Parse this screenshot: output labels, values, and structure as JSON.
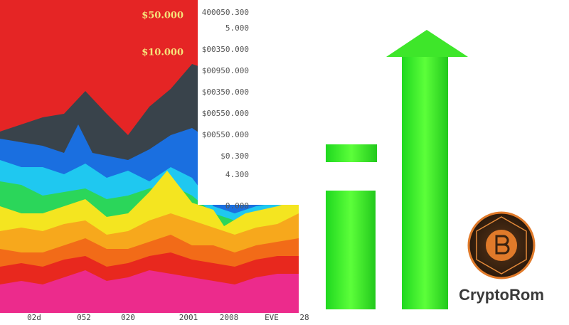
{
  "left_labels": [
    "$50.000",
    "$10.000"
  ],
  "right_labels": [
    "400050.300",
    "5.000",
    "$00350.000",
    "$00950.000",
    "$00350.000",
    "$00550.000",
    "$00550.000",
    "$0.300",
    "4.300",
    "0.000"
  ],
  "bottom_labels": [
    "02d",
    "052",
    "020",
    "2001",
    "2008",
    "EVE",
    "28"
  ],
  "logo": {
    "text": "CryptoRom"
  }
}
